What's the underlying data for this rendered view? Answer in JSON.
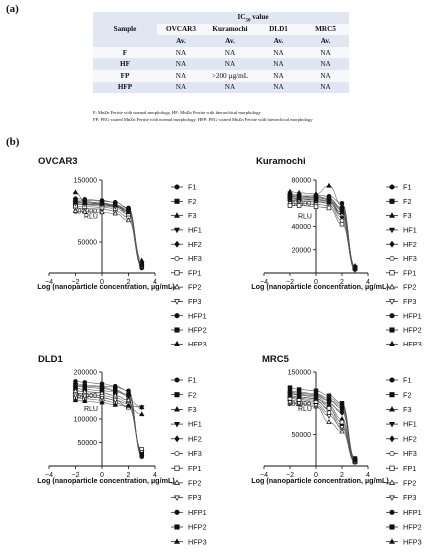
{
  "part_a": "(a)",
  "part_b": "(b)",
  "table": {
    "sample_header": "Sample",
    "group_header": "IC",
    "group_sub": "50",
    "group_tail": " value",
    "cells": [
      "OVCAR3",
      "Kuramochi",
      "DLD1",
      "MRC5"
    ],
    "av": "Av.",
    "rows": [
      {
        "sample": "F",
        "values": [
          "NA",
          "NA",
          "NA",
          "NA"
        ]
      },
      {
        "sample": "HF",
        "values": [
          "NA",
          "NA",
          "NA",
          "NA"
        ]
      },
      {
        "sample": "FP",
        "values": [
          "NA",
          ">200 µg/mL",
          "NA",
          "NA"
        ]
      },
      {
        "sample": "HFP",
        "values": [
          "NA",
          "NA",
          "NA",
          "NA"
        ]
      }
    ]
  },
  "footnotes": [
    "F: MnZn Ferrite with normal morphology, HF: MnZn Ferrite with hierarchical morphology",
    "FP: PEG-coated MnZn Ferrite with normal morphology, HFP: PEG-coated MnZn Ferrite with hierarchical morphology"
  ],
  "legend_entries": [
    "F1",
    "F2",
    "F3",
    "HF1",
    "HF2",
    "HF3",
    "FP1",
    "FP2",
    "FP3",
    "HFP1",
    "HFP2",
    "HFP3"
  ],
  "legend_markers": [
    "circle-filled",
    "square-filled",
    "triangle-up-filled",
    "triangle-down-filled",
    "diamond-filled",
    "circle-open",
    "square-open",
    "triangle-up-open",
    "triangle-down-open",
    "circle-filled",
    "square-filled",
    "triangle-up-filled"
  ],
  "chart_data": [
    {
      "type": "scatter",
      "title": "OVCAR3",
      "xlabel": "Log (nanoparticle concentration, µg/mL)",
      "ylabel": "RLU",
      "xlim": [
        -4,
        4
      ],
      "ylim": [
        0,
        150000
      ],
      "xticks": [
        "−4",
        "−2",
        "0",
        "2",
        "4"
      ],
      "yticks": [
        "50000",
        "100000",
        "150000"
      ],
      "ytick_values": [
        50000,
        100000,
        150000
      ],
      "x": [
        -2,
        -1.3,
        0,
        1,
        2,
        3
      ],
      "series": [
        {
          "name": "F1",
          "values": [
            118000,
            117000,
            116000,
            114000,
            105000,
            8000
          ]
        },
        {
          "name": "F2",
          "values": [
            110000,
            111000,
            110000,
            108000,
            102000,
            15000
          ]
        },
        {
          "name": "F3",
          "values": [
            130000,
            115000,
            112000,
            110000,
            100000,
            20000
          ]
        },
        {
          "name": "HF1",
          "values": [
            112000,
            110000,
            108000,
            106000,
            98000,
            10000
          ]
        },
        {
          "name": "HF2",
          "values": [
            115000,
            113000,
            111000,
            108000,
            95000,
            12000
          ]
        },
        {
          "name": "HF3",
          "values": [
            105000,
            104000,
            103000,
            100000,
            90000,
            10000
          ]
        },
        {
          "name": "FP1",
          "values": [
            108000,
            107000,
            106000,
            104000,
            95000,
            12000
          ]
        },
        {
          "name": "FP2",
          "values": [
            100000,
            99000,
            98000,
            96000,
            85000,
            10000
          ]
        },
        {
          "name": "FP3",
          "values": [
            112000,
            111000,
            110000,
            107000,
            100000,
            15000
          ]
        },
        {
          "name": "HFP1",
          "values": [
            120000,
            119000,
            117000,
            114000,
            104000,
            14000
          ]
        },
        {
          "name": "HFP2",
          "values": [
            116000,
            115000,
            113000,
            110000,
            102000,
            12000
          ]
        },
        {
          "name": "HFP3",
          "values": [
            114000,
            113000,
            112000,
            109000,
            98000,
            13000
          ]
        }
      ]
    },
    {
      "type": "scatter",
      "title": "Kuramochi",
      "xlabel": "Log (nanoparticle concentration, µg/mL)",
      "ylabel": "RLU",
      "xlim": [
        -4,
        4
      ],
      "ylim": [
        0,
        80000
      ],
      "xticks": [
        "−4",
        "−2",
        "0",
        "2",
        "4"
      ],
      "yticks": [
        "20000",
        "40000",
        "60000",
        "80000"
      ],
      "ytick_values": [
        20000,
        40000,
        60000,
        80000
      ],
      "x": [
        -2,
        -1.3,
        0,
        1,
        2,
        3
      ],
      "series": [
        {
          "name": "F1",
          "values": [
            68000,
            67000,
            67000,
            66000,
            60000,
            5000
          ]
        },
        {
          "name": "F2",
          "values": [
            66000,
            66000,
            65000,
            64000,
            55000,
            4000
          ]
        },
        {
          "name": "F3",
          "values": [
            70000,
            69000,
            68000,
            75000,
            58000,
            6000
          ]
        },
        {
          "name": "HF1",
          "values": [
            64000,
            63000,
            63000,
            62000,
            50000,
            4000
          ]
        },
        {
          "name": "HF2",
          "values": [
            62000,
            62000,
            61000,
            60000,
            48000,
            3000
          ]
        },
        {
          "name": "HF3",
          "values": [
            60000,
            60000,
            59000,
            58000,
            45000,
            3000
          ]
        },
        {
          "name": "FP1",
          "values": [
            58000,
            58000,
            57000,
            56000,
            42000,
            5000
          ]
        },
        {
          "name": "FP2",
          "values": [
            65000,
            64000,
            64000,
            62000,
            52000,
            4000
          ]
        },
        {
          "name": "FP3",
          "values": [
            63000,
            62000,
            62000,
            60000,
            50000,
            3000
          ]
        },
        {
          "name": "HFP1",
          "values": [
            67000,
            66000,
            66000,
            64000,
            56000,
            5000
          ]
        },
        {
          "name": "HFP2",
          "values": [
            66000,
            65000,
            65000,
            63000,
            54000,
            4000
          ]
        },
        {
          "name": "HFP3",
          "values": [
            64000,
            64000,
            63000,
            61000,
            52000,
            4000
          ]
        }
      ]
    },
    {
      "type": "scatter",
      "title": "DLD1",
      "xlabel": "Log (nanoparticle concentration, µg/mL)",
      "ylabel": "RLU",
      "xlim": [
        -4,
        4
      ],
      "ylim": [
        0,
        200000
      ],
      "xticks": [
        "−4",
        "−2",
        "0",
        "2",
        "4"
      ],
      "yticks": [
        "50000",
        "100000",
        "150000",
        "200000"
      ],
      "ytick_values": [
        50000,
        100000,
        150000,
        200000
      ],
      "x": [
        -2,
        -1.3,
        0,
        1,
        2,
        3
      ],
      "series": [
        {
          "name": "F1",
          "values": [
            175000,
            172000,
            170000,
            168000,
            160000,
            20000
          ]
        },
        {
          "name": "F2",
          "values": [
            165000,
            163000,
            160000,
            158000,
            150000,
            30000
          ]
        },
        {
          "name": "F3",
          "values": [
            150000,
            148000,
            146000,
            140000,
            125000,
            110000
          ]
        },
        {
          "name": "HF1",
          "values": [
            160000,
            158000,
            156000,
            150000,
            140000,
            125000
          ]
        },
        {
          "name": "HF2",
          "values": [
            170000,
            168000,
            165000,
            160000,
            150000,
            25000
          ]
        },
        {
          "name": "HF3",
          "values": [
            155000,
            153000,
            150000,
            145000,
            135000,
            30000
          ]
        },
        {
          "name": "FP1",
          "values": [
            145000,
            143000,
            140000,
            135000,
            125000,
            35000
          ]
        },
        {
          "name": "FP2",
          "values": [
            160000,
            158000,
            155000,
            150000,
            140000,
            25000
          ]
        },
        {
          "name": "FP3",
          "values": [
            150000,
            148000,
            145000,
            140000,
            132000,
            30000
          ]
        },
        {
          "name": "HFP1",
          "values": [
            180000,
            178000,
            175000,
            170000,
            160000,
            20000
          ]
        },
        {
          "name": "HFP2",
          "values": [
            172000,
            170000,
            168000,
            162000,
            152000,
            25000
          ]
        },
        {
          "name": "HFP3",
          "values": [
            140000,
            138000,
            135000,
            130000,
            128000,
            125000
          ]
        }
      ]
    },
    {
      "type": "scatter",
      "title": "MRC5",
      "xlabel": "Log (nanoparticle concentration, µg/mL)",
      "ylabel": "RLU",
      "xlim": [
        -4,
        4
      ],
      "ylim": [
        0,
        150000
      ],
      "xticks": [
        "−4",
        "−2",
        "0",
        "2",
        "4"
      ],
      "yticks": [
        "50000",
        "100000",
        "150000"
      ],
      "ytick_values": [
        50000,
        100000,
        150000
      ],
      "x": [
        -2,
        -1.3,
        0,
        1,
        2,
        3
      ],
      "series": [
        {
          "name": "F1",
          "values": [
            118000,
            116000,
            114000,
            105000,
            95000,
            10000
          ]
        },
        {
          "name": "F2",
          "values": [
            125000,
            122000,
            120000,
            112000,
            100000,
            12000
          ]
        },
        {
          "name": "F3",
          "values": [
            112000,
            110000,
            108000,
            95000,
            75000,
            8000
          ]
        },
        {
          "name": "HF1",
          "values": [
            110000,
            108000,
            105000,
            90000,
            65000,
            6000
          ]
        },
        {
          "name": "HF2",
          "values": [
            115000,
            113000,
            110000,
            100000,
            85000,
            9000
          ]
        },
        {
          "name": "HF3",
          "values": [
            105000,
            104000,
            100000,
            85000,
            60000,
            7000
          ]
        },
        {
          "name": "FP1",
          "values": [
            108000,
            106000,
            103000,
            92000,
            70000,
            8000
          ]
        },
        {
          "name": "FP2",
          "values": [
            100000,
            99000,
            95000,
            70000,
            55000,
            6000
          ]
        },
        {
          "name": "FP3",
          "values": [
            102000,
            100000,
            97000,
            80000,
            62000,
            7000
          ]
        },
        {
          "name": "HFP1",
          "values": [
            120000,
            118000,
            115000,
            108000,
            98000,
            11000
          ]
        },
        {
          "name": "HFP2",
          "values": [
            116000,
            114000,
            112000,
            104000,
            92000,
            10000
          ]
        },
        {
          "name": "HFP3",
          "values": [
            112000,
            110000,
            107000,
            98000,
            88000,
            9000
          ]
        }
      ]
    }
  ]
}
